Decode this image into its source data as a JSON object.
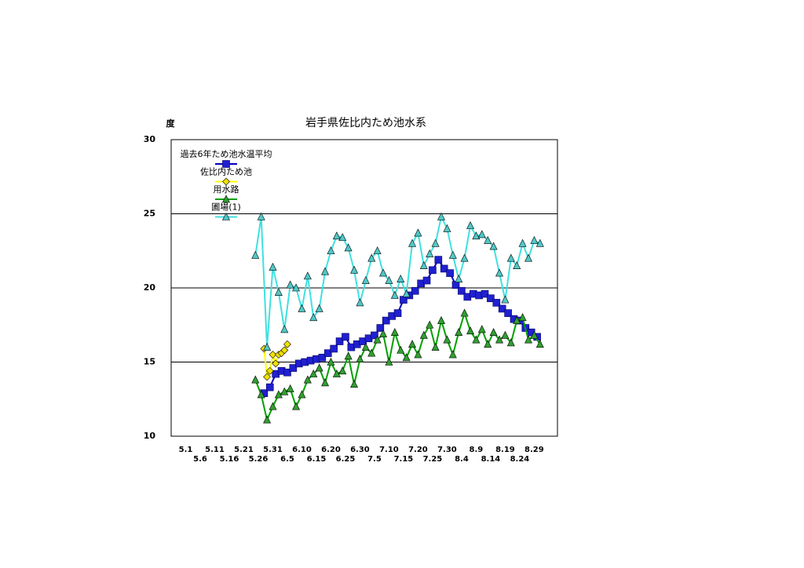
{
  "chart_data": {
    "type": "line",
    "title": "岩手県佐比内ため池水系",
    "y_label": "度",
    "xlim": [
      -5,
      128
    ],
    "ylim": [
      10,
      30
    ],
    "yticks": [
      10,
      15,
      20,
      25,
      30
    ],
    "grid": true,
    "xticks": [
      {
        "value": 0,
        "label": "5.1"
      },
      {
        "value": 5,
        "label": "5.6"
      },
      {
        "value": 10,
        "label": "5.11"
      },
      {
        "value": 15,
        "label": "5.16"
      },
      {
        "value": 20,
        "label": "5.21"
      },
      {
        "value": 25,
        "label": "5.26"
      },
      {
        "value": 30,
        "label": "5.31"
      },
      {
        "value": 35,
        "label": "6.5"
      },
      {
        "value": 40,
        "label": "6.10"
      },
      {
        "value": 45,
        "label": "6.15"
      },
      {
        "value": 50,
        "label": "6.20"
      },
      {
        "value": 55,
        "label": "6.25"
      },
      {
        "value": 60,
        "label": "6.30"
      },
      {
        "value": 65,
        "label": "7.5"
      },
      {
        "value": 70,
        "label": "7.10"
      },
      {
        "value": 75,
        "label": "7.15"
      },
      {
        "value": 80,
        "label": "7.20"
      },
      {
        "value": 85,
        "label": "7.25"
      },
      {
        "value": 90,
        "label": "7.30"
      },
      {
        "value": 95,
        "label": "8.4"
      },
      {
        "value": 100,
        "label": "8.9"
      },
      {
        "value": 105,
        "label": "8.14"
      },
      {
        "value": 110,
        "label": "8.19"
      },
      {
        "value": 115,
        "label": "8.24"
      },
      {
        "value": 120,
        "label": "8.29"
      }
    ],
    "legend": "upper left",
    "series": [
      {
        "name": "過去6年ため池水温平均",
        "color": "#0000c0",
        "marker_color": "#2020d0",
        "marker": "square",
        "x": [
          27,
          29,
          31,
          33,
          35,
          37,
          39,
          41,
          43,
          45,
          47,
          49,
          51,
          53,
          55,
          57,
          59,
          61,
          63,
          65,
          67,
          69,
          71,
          73,
          75,
          77,
          79,
          81,
          83,
          85,
          87,
          89,
          91,
          93,
          95,
          97,
          99,
          101,
          103,
          105,
          107,
          109,
          111,
          113,
          115,
          117,
          119,
          121
        ],
        "values": [
          12.9,
          13.3,
          14.2,
          14.4,
          14.3,
          14.6,
          14.9,
          15.0,
          15.1,
          15.2,
          15.3,
          15.6,
          15.9,
          16.4,
          16.7,
          16.0,
          16.2,
          16.4,
          16.6,
          16.8,
          17.3,
          17.8,
          18.1,
          18.3,
          19.2,
          19.5,
          19.8,
          20.3,
          20.5,
          21.2,
          21.9,
          21.3,
          21.0,
          20.2,
          19.8,
          19.4,
          19.6,
          19.5,
          19.6,
          19.3,
          19.0,
          18.6,
          18.3,
          17.9,
          17.8,
          17.3,
          17.0,
          16.7
        ]
      },
      {
        "name": "佐比内ため池",
        "color": "#ffff00",
        "marker_color": "#f0e000",
        "marker": "diamond",
        "x": [
          27,
          28,
          29,
          30,
          31,
          32,
          33,
          34,
          35
        ],
        "values": [
          15.9,
          14.0,
          14.4,
          15.5,
          14.9,
          15.5,
          15.6,
          15.8,
          16.2
        ]
      },
      {
        "name": "用水路",
        "color": "#00a000",
        "marker_color": "#30a030",
        "marker": "triangle",
        "x": [
          24,
          26,
          28,
          30,
          32,
          34,
          36,
          38,
          40,
          42,
          44,
          46,
          48,
          50,
          52,
          54,
          56,
          58,
          60,
          62,
          64,
          66,
          68,
          70,
          72,
          74,
          76,
          78,
          80,
          82,
          84,
          86,
          88,
          90,
          92,
          94,
          96,
          98,
          100,
          102,
          104,
          106,
          108,
          110,
          112,
          114,
          116,
          118,
          120,
          122
        ],
        "values": [
          13.8,
          12.8,
          11.1,
          12.0,
          12.8,
          13.0,
          13.2,
          12.0,
          12.8,
          13.8,
          14.2,
          14.6,
          13.6,
          15.0,
          14.2,
          14.4,
          15.4,
          13.5,
          15.2,
          16.0,
          15.6,
          16.5,
          16.9,
          15.0,
          17.0,
          15.8,
          15.3,
          16.2,
          15.5,
          16.8,
          17.5,
          16.0,
          17.8,
          16.5,
          15.5,
          17.0,
          18.3,
          17.1,
          16.5,
          17.2,
          16.2,
          17.0,
          16.5,
          16.8,
          16.3,
          17.8,
          18.0,
          16.5,
          16.8,
          16.2
        ]
      },
      {
        "name": "圃場(1)",
        "color": "#40e0e0",
        "marker_color": "#50c8c8",
        "marker": "triangle",
        "x": [
          24,
          26,
          28,
          30,
          32,
          34,
          36,
          38,
          40,
          42,
          44,
          46,
          48,
          50,
          52,
          54,
          56,
          58,
          60,
          62,
          64,
          66,
          68,
          70,
          72,
          74,
          76,
          78,
          80,
          82,
          84,
          86,
          88,
          90,
          92,
          94,
          96,
          98,
          100,
          102,
          104,
          106,
          108,
          110,
          112,
          114,
          116,
          118,
          120,
          122
        ],
        "values": [
          22.2,
          24.8,
          16.0,
          21.4,
          19.7,
          17.2,
          20.2,
          20.0,
          18.6,
          20.8,
          18.0,
          18.6,
          21.1,
          22.5,
          23.5,
          23.4,
          22.7,
          21.2,
          19.0,
          20.5,
          22.0,
          22.5,
          21.0,
          20.5,
          19.5,
          20.6,
          19.6,
          23.0,
          23.7,
          21.5,
          22.3,
          23.0,
          24.8,
          24.0,
          22.2,
          20.6,
          22.0,
          24.2,
          23.5,
          23.6,
          23.2,
          22.8,
          21.0,
          19.2,
          22.0,
          21.5,
          23.0,
          22.0,
          23.2,
          23.0
        ]
      }
    ]
  }
}
